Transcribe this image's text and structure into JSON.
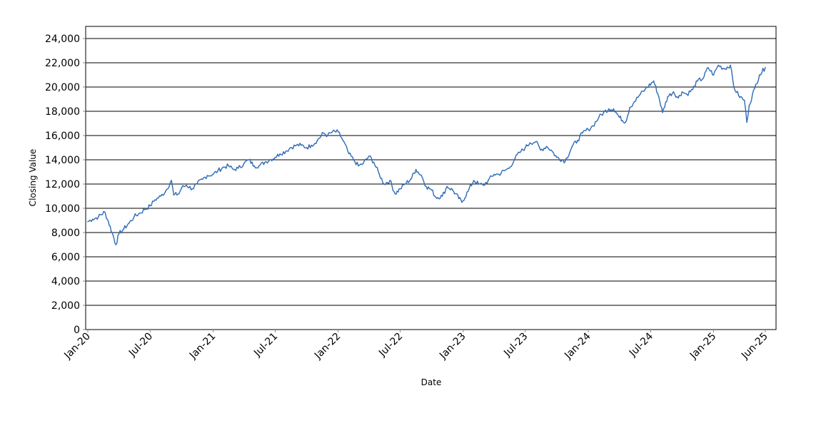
{
  "chart_data": {
    "type": "line",
    "title": "",
    "xlabel": "Date",
    "ylabel": "Closing Value",
    "ylim": [
      0,
      25000
    ],
    "xlim": [
      "2020-01-01",
      "2025-06-01"
    ],
    "yticks": [
      0,
      2000,
      4000,
      6000,
      8000,
      10000,
      12000,
      14000,
      16000,
      18000,
      20000,
      22000,
      24000
    ],
    "ytick_labels": [
      "0",
      "2,000",
      "4,000",
      "6,000",
      "8,000",
      "10,000",
      "12,000",
      "14,000",
      "16,000",
      "18,000",
      "20,000",
      "22,000",
      "24,000"
    ],
    "xticks": [
      "2020-01-01",
      "2020-07-01",
      "2021-01-01",
      "2021-07-01",
      "2022-01-01",
      "2022-07-01",
      "2023-01-01",
      "2023-07-01",
      "2024-01-01",
      "2024-07-01",
      "2025-01-01",
      "2025-06-01"
    ],
    "xtick_labels": [
      "Jan-20",
      "Jul-20",
      "Jan-21",
      "Jul-21",
      "Jan-22",
      "Jul-22",
      "Jan-23",
      "Jul-23",
      "Jan-24",
      "Jul-24",
      "Jan-25",
      "Jun-25"
    ],
    "grid": "horizontal",
    "legend": "none",
    "line_color": "#2e6bb5",
    "series": [
      {
        "x": [
          "2020-01-01",
          "2020-01-15",
          "2020-02-01",
          "2020-02-19",
          "2020-03-01",
          "2020-03-12",
          "2020-03-23",
          "2020-04-01",
          "2020-04-15",
          "2020-05-01",
          "2020-05-15",
          "2020-06-01",
          "2020-06-15",
          "2020-07-01",
          "2020-07-15",
          "2020-08-01",
          "2020-08-15",
          "2020-09-01",
          "2020-09-08",
          "2020-09-23",
          "2020-10-01",
          "2020-10-15",
          "2020-11-01",
          "2020-11-15",
          "2020-12-01",
          "2020-12-15",
          "2021-01-01",
          "2021-01-15",
          "2021-02-01",
          "2021-02-15",
          "2021-03-01",
          "2021-03-15",
          "2021-04-01",
          "2021-04-15",
          "2021-05-01",
          "2021-05-15",
          "2021-06-01",
          "2021-06-15",
          "2021-07-01",
          "2021-07-15",
          "2021-08-01",
          "2021-08-15",
          "2021-09-01",
          "2021-09-15",
          "2021-10-01",
          "2021-10-15",
          "2021-11-01",
          "2021-11-19",
          "2021-12-01",
          "2021-12-15",
          "2022-01-01",
          "2022-01-15",
          "2022-02-01",
          "2022-02-15",
          "2022-03-01",
          "2022-03-15",
          "2022-04-01",
          "2022-04-15",
          "2022-05-01",
          "2022-05-15",
          "2022-06-01",
          "2022-06-16",
          "2022-07-01",
          "2022-07-15",
          "2022-08-01",
          "2022-08-16",
          "2022-09-01",
          "2022-09-15",
          "2022-10-01",
          "2022-10-13",
          "2022-11-01",
          "2022-11-15",
          "2022-12-01",
          "2022-12-28",
          "2023-01-15",
          "2023-02-01",
          "2023-02-15",
          "2023-03-01",
          "2023-03-15",
          "2023-04-01",
          "2023-04-15",
          "2023-05-01",
          "2023-05-15",
          "2023-06-01",
          "2023-06-15",
          "2023-07-01",
          "2023-07-15",
          "2023-08-01",
          "2023-08-15",
          "2023-09-01",
          "2023-09-15",
          "2023-10-01",
          "2023-10-26",
          "2023-11-15",
          "2023-12-01",
          "2023-12-15",
          "2024-01-01",
          "2024-01-15",
          "2024-02-01",
          "2024-02-15",
          "2024-03-01",
          "2024-03-15",
          "2024-04-01",
          "2024-04-19",
          "2024-05-01",
          "2024-05-15",
          "2024-06-01",
          "2024-06-15",
          "2024-07-10",
          "2024-07-25",
          "2024-08-05",
          "2024-08-20",
          "2024-09-06",
          "2024-09-20",
          "2024-10-01",
          "2024-10-15",
          "2024-11-01",
          "2024-11-15",
          "2024-12-01",
          "2024-12-16",
          "2025-01-01",
          "2025-01-15",
          "2025-02-01",
          "2025-02-19",
          "2025-03-01",
          "2025-03-15",
          "2025-04-01",
          "2025-04-08",
          "2025-04-15",
          "2025-05-01",
          "2025-05-15",
          "2025-06-01"
        ],
        "y": [
          8900,
          9100,
          9300,
          9700,
          8900,
          8000,
          7000,
          7900,
          8300,
          8800,
          9300,
          9600,
          9900,
          10200,
          10700,
          11000,
          11400,
          12300,
          11100,
          11200,
          11700,
          11900,
          11600,
          12000,
          12400,
          12700,
          12800,
          13100,
          13400,
          13500,
          13200,
          13300,
          13700,
          14000,
          13500,
          13500,
          13800,
          14000,
          14200,
          14500,
          14700,
          15000,
          15200,
          15200,
          15000,
          15200,
          15600,
          16200,
          16000,
          16300,
          16300,
          15600,
          14500,
          14000,
          13500,
          13700,
          14300,
          13800,
          12800,
          12000,
          12300,
          11200,
          11600,
          12000,
          12400,
          13200,
          12700,
          11800,
          11500,
          10900,
          11000,
          11800,
          11500,
          10500,
          11400,
          12300,
          12000,
          11900,
          12300,
          12800,
          12800,
          13100,
          13300,
          14100,
          14600,
          15000,
          15400,
          15500,
          14800,
          15100,
          14800,
          14200,
          13900,
          15100,
          15600,
          16200,
          16500,
          16800,
          17500,
          17900,
          18200,
          18200,
          17500,
          17100,
          18300,
          18800,
          19400,
          19800,
          20500,
          19200,
          17900,
          19200,
          19600,
          19100,
          19600,
          19400,
          19800,
          20500,
          20700,
          21600,
          21000,
          21800,
          21500,
          21800,
          20000,
          19300,
          18900,
          17100,
          18500,
          19900,
          21000,
          21600
        ]
      }
    ]
  }
}
